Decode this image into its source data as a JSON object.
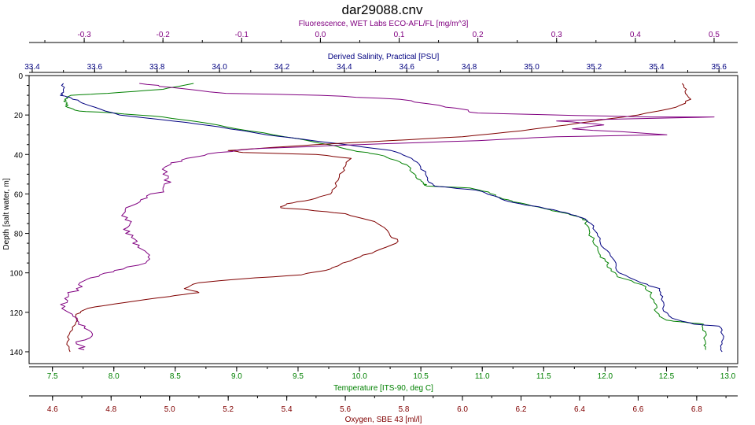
{
  "chart_data": {
    "type": "line",
    "title": "dar29088.cnv",
    "grid": false,
    "legend": "none",
    "y_axis": {
      "label": "Depth [salt water, m]",
      "range": [
        0,
        146
      ],
      "inverted": true,
      "ticks": [
        0,
        20,
        40,
        60,
        80,
        100,
        120,
        140
      ]
    },
    "x_axes": [
      {
        "id": "fluorescence",
        "label": "Fluorescence, WET Labs ECO-AFL/FL [mg/m^3]",
        "position": "top",
        "color": "#800080",
        "range": [
          -0.37,
          0.53
        ],
        "ticks": [
          -0.3,
          -0.2,
          -0.1,
          0.0,
          0.1,
          0.2,
          0.3,
          0.4,
          0.5
        ],
        "tick_labels": [
          "-0.3",
          "-0.2",
          "-0.1",
          "0.0",
          "0.1",
          "0.2",
          "0.3",
          "0.4",
          "0.5"
        ]
      },
      {
        "id": "salinity",
        "label": "Derived Salinity, Practical [PSU]",
        "position": "top",
        "color": "#000080",
        "range": [
          33.39,
          35.66
        ],
        "ticks": [
          33.4,
          33.6,
          33.8,
          34.0,
          34.2,
          34.4,
          34.6,
          34.8,
          35.0,
          35.2,
          35.4,
          35.6
        ],
        "tick_labels": [
          "33.4",
          "33.6",
          "33.8",
          "34.0",
          "34.2",
          "34.4",
          "34.6",
          "34.8",
          "35.0",
          "35.2",
          "35.4",
          "35.6"
        ]
      },
      {
        "id": "temperature",
        "label": "Temperature [ITS-90, deg C]",
        "position": "bottom",
        "color": "#008000",
        "range": [
          7.31,
          13.08
        ],
        "ticks": [
          7.5,
          8.0,
          8.5,
          9.0,
          9.5,
          10.0,
          10.5,
          11.0,
          11.5,
          12.0,
          12.5,
          13.0
        ],
        "tick_labels": [
          "7.5",
          "8.0",
          "8.5",
          "9.0",
          "9.5",
          "10.0",
          "10.5",
          "11.0",
          "11.5",
          "12.0",
          "12.5",
          "13.0"
        ]
      },
      {
        "id": "oxygen",
        "label": "Oxygen, SBE 43 [ml/l]",
        "position": "bottom",
        "color": "#800000",
        "range": [
          4.52,
          6.94
        ],
        "ticks": [
          4.6,
          4.8,
          5.0,
          5.2,
          5.4,
          5.6,
          5.8,
          6.0,
          6.2,
          6.4,
          6.6,
          6.8
        ],
        "tick_labels": [
          "4.6",
          "4.8",
          "5.0",
          "5.2",
          "5.4",
          "5.6",
          "5.8",
          "6.0",
          "6.2",
          "6.4",
          "6.6",
          "6.8"
        ]
      }
    ],
    "series": [
      {
        "axis": "temperature",
        "color": "#008000",
        "points": [
          [
            8.65,
            4
          ],
          [
            8.4,
            7
          ],
          [
            7.95,
            9
          ],
          [
            7.65,
            10
          ],
          [
            7.6,
            12
          ],
          [
            7.62,
            14
          ],
          [
            7.62,
            16
          ],
          [
            7.72,
            18
          ],
          [
            8.0,
            19
          ],
          [
            8.4,
            21
          ],
          [
            8.75,
            24
          ],
          [
            9.1,
            28
          ],
          [
            9.5,
            32
          ],
          [
            9.75,
            35
          ],
          [
            9.95,
            38
          ],
          [
            10.15,
            40
          ],
          [
            10.3,
            43
          ],
          [
            10.4,
            46
          ],
          [
            10.45,
            50
          ],
          [
            10.5,
            53
          ],
          [
            10.52,
            55
          ],
          [
            10.55,
            56
          ],
          [
            10.9,
            57
          ],
          [
            11.05,
            59
          ],
          [
            11.15,
            62
          ],
          [
            11.25,
            64
          ],
          [
            11.4,
            66
          ],
          [
            11.55,
            68
          ],
          [
            11.7,
            70
          ],
          [
            11.8,
            72
          ],
          [
            11.85,
            74
          ],
          [
            11.87,
            78
          ],
          [
            11.9,
            84
          ],
          [
            11.95,
            90
          ],
          [
            12.0,
            94
          ],
          [
            12.05,
            98
          ],
          [
            12.1,
            102
          ],
          [
            12.3,
            106
          ],
          [
            12.38,
            110
          ],
          [
            12.4,
            115
          ],
          [
            12.42,
            120
          ],
          [
            12.5,
            124
          ],
          [
            12.65,
            125
          ],
          [
            12.8,
            126
          ],
          [
            12.82,
            130
          ],
          [
            12.82,
            136
          ],
          [
            12.82,
            139
          ]
        ]
      },
      {
        "axis": "salinity",
        "color": "#000080",
        "points": [
          [
            33.5,
            4
          ],
          [
            33.5,
            8
          ],
          [
            33.49,
            10
          ],
          [
            33.52,
            11
          ],
          [
            33.55,
            13
          ],
          [
            33.6,
            16
          ],
          [
            33.68,
            20
          ],
          [
            33.85,
            23
          ],
          [
            34.0,
            26
          ],
          [
            34.15,
            30
          ],
          [
            34.3,
            33
          ],
          [
            34.45,
            36
          ],
          [
            34.55,
            38
          ],
          [
            34.6,
            41
          ],
          [
            34.64,
            45
          ],
          [
            34.66,
            50
          ],
          [
            34.67,
            54
          ],
          [
            34.69,
            56
          ],
          [
            34.75,
            57
          ],
          [
            34.82,
            58
          ],
          [
            34.88,
            61
          ],
          [
            34.93,
            64
          ],
          [
            35.0,
            66
          ],
          [
            35.07,
            68
          ],
          [
            35.12,
            70
          ],
          [
            35.16,
            72
          ],
          [
            35.19,
            75
          ],
          [
            35.21,
            80
          ],
          [
            35.22,
            85
          ],
          [
            35.25,
            90
          ],
          [
            35.27,
            95
          ],
          [
            35.28,
            100
          ],
          [
            35.35,
            105
          ],
          [
            35.41,
            108
          ],
          [
            35.42,
            112
          ],
          [
            35.42,
            118
          ],
          [
            35.45,
            123
          ],
          [
            35.52,
            126
          ],
          [
            35.6,
            127
          ],
          [
            35.61,
            131
          ],
          [
            35.61,
            136
          ],
          [
            35.61,
            140
          ]
        ]
      },
      {
        "axis": "oxygen",
        "color": "#800000",
        "points": [
          [
            6.75,
            4
          ],
          [
            6.76,
            8
          ],
          [
            6.78,
            12
          ],
          [
            6.73,
            16
          ],
          [
            6.6,
            20
          ],
          [
            6.4,
            24
          ],
          [
            6.2,
            28
          ],
          [
            6.0,
            31
          ],
          [
            5.75,
            33
          ],
          [
            5.5,
            35
          ],
          [
            5.3,
            37
          ],
          [
            5.2,
            38
          ],
          [
            5.25,
            39
          ],
          [
            5.5,
            40
          ],
          [
            5.62,
            42
          ],
          [
            5.6,
            46
          ],
          [
            5.58,
            50
          ],
          [
            5.57,
            56
          ],
          [
            5.55,
            60
          ],
          [
            5.48,
            63
          ],
          [
            5.4,
            65
          ],
          [
            5.38,
            67
          ],
          [
            5.47,
            68
          ],
          [
            5.6,
            70
          ],
          [
            5.7,
            74
          ],
          [
            5.75,
            80
          ],
          [
            5.78,
            84
          ],
          [
            5.72,
            88
          ],
          [
            5.65,
            92
          ],
          [
            5.58,
            96
          ],
          [
            5.55,
            98
          ],
          [
            5.45,
            101
          ],
          [
            5.25,
            103
          ],
          [
            5.1,
            105
          ],
          [
            5.05,
            108
          ],
          [
            5.1,
            110
          ],
          [
            5.0,
            112
          ],
          [
            4.85,
            115
          ],
          [
            4.72,
            118
          ],
          [
            4.68,
            121
          ],
          [
            4.68,
            125
          ],
          [
            4.66,
            130
          ],
          [
            4.65,
            135
          ],
          [
            4.66,
            140
          ]
        ]
      },
      {
        "axis": "fluorescence",
        "color": "#800080",
        "points": [
          [
            -0.23,
            4
          ],
          [
            -0.19,
            6
          ],
          [
            -0.12,
            9
          ],
          [
            0.0,
            10
          ],
          [
            0.1,
            12
          ],
          [
            0.15,
            15
          ],
          [
            0.18,
            17
          ],
          [
            0.2,
            19
          ],
          [
            0.3,
            20
          ],
          [
            0.42,
            21
          ],
          [
            0.5,
            21
          ],
          [
            0.38,
            22
          ],
          [
            0.3,
            23
          ],
          [
            0.36,
            25
          ],
          [
            0.32,
            27
          ],
          [
            0.44,
            30
          ],
          [
            0.3,
            31
          ],
          [
            0.2,
            33
          ],
          [
            0.05,
            35
          ],
          [
            -0.08,
            37
          ],
          [
            -0.13,
            39
          ],
          [
            -0.17,
            42
          ],
          [
            -0.19,
            45
          ],
          [
            -0.2,
            50
          ],
          [
            -0.19,
            54
          ],
          [
            -0.2,
            58
          ],
          [
            -0.22,
            62
          ],
          [
            -0.24,
            66
          ],
          [
            -0.25,
            70
          ],
          [
            -0.24,
            74
          ],
          [
            -0.25,
            78
          ],
          [
            -0.24,
            82
          ],
          [
            -0.23,
            86
          ],
          [
            -0.22,
            90
          ],
          [
            -0.22,
            94
          ],
          [
            -0.25,
            98
          ],
          [
            -0.28,
            101
          ],
          [
            -0.3,
            104
          ],
          [
            -0.31,
            108
          ],
          [
            -0.32,
            112
          ],
          [
            -0.33,
            116
          ],
          [
            -0.32,
            120
          ],
          [
            -0.31,
            124
          ],
          [
            -0.3,
            128
          ],
          [
            -0.29,
            132
          ],
          [
            -0.31,
            136
          ],
          [
            -0.3,
            139
          ]
        ]
      }
    ]
  }
}
